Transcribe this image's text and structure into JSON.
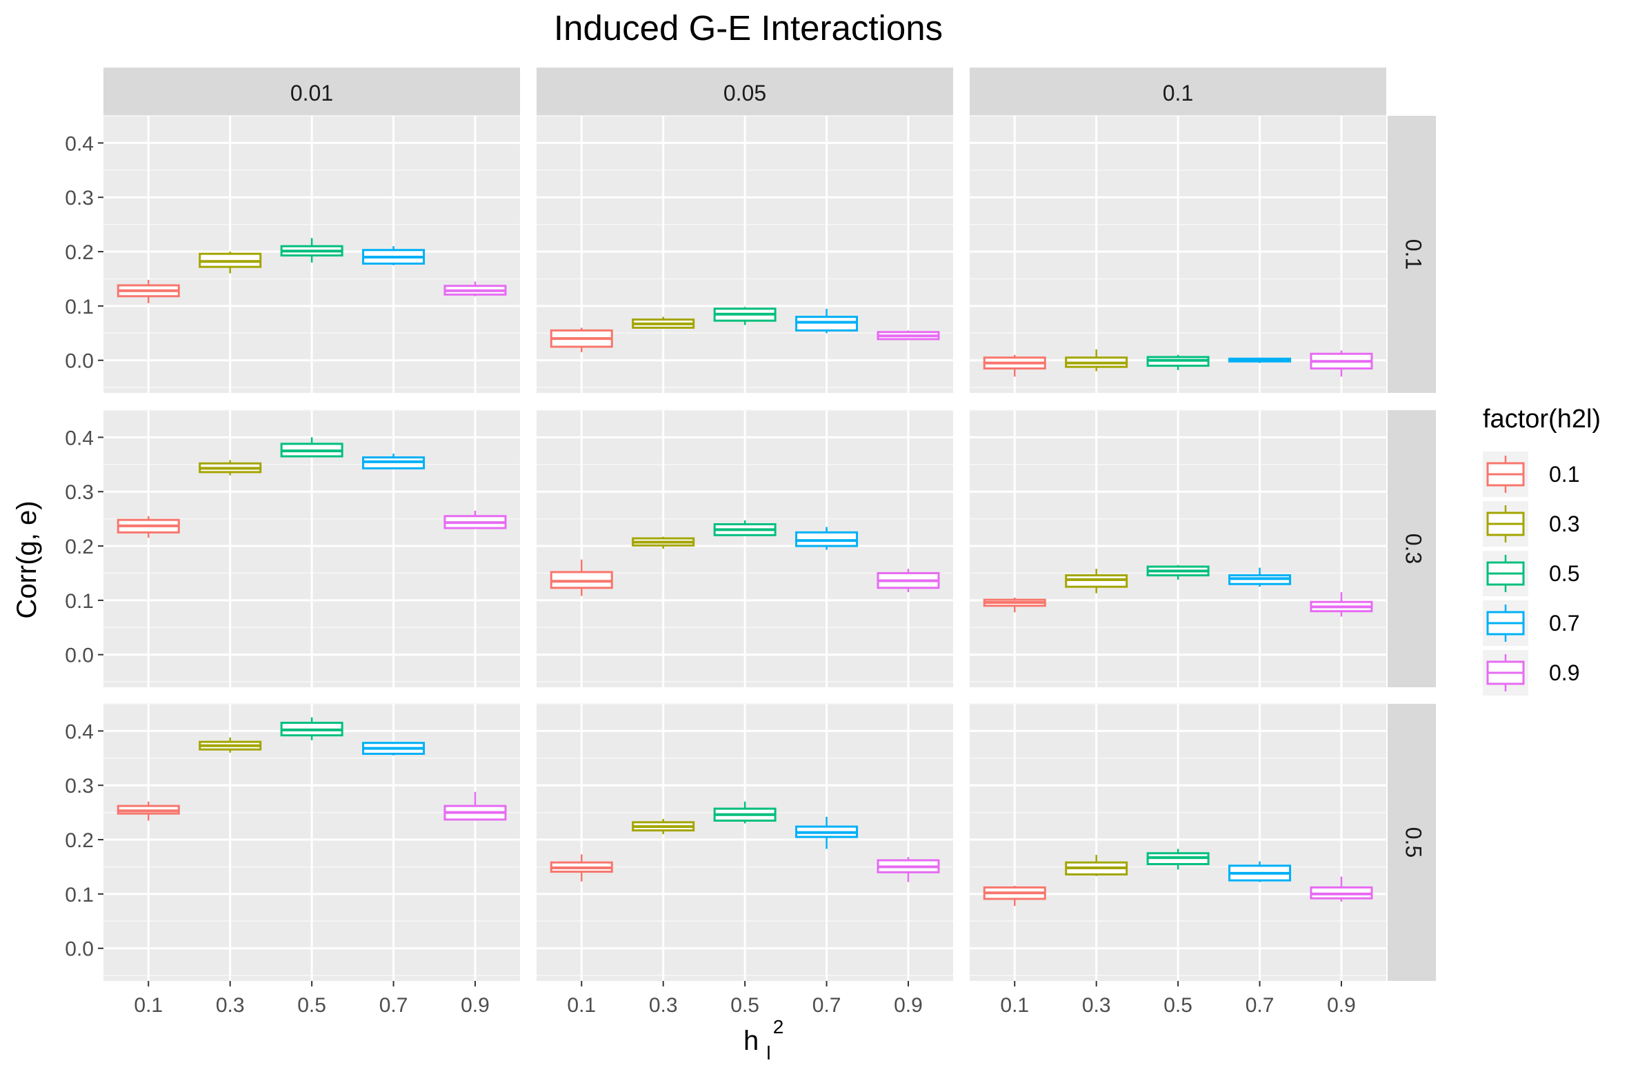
{
  "chart_data": {
    "type": "boxplot",
    "title": "Induced G-E Interactions",
    "xlabel_base": "h",
    "xlabel_sub": "l",
    "xlabel_sup": "2",
    "ylabel": "Corr(g, e)",
    "x_categories": [
      "0.1",
      "0.3",
      "0.5",
      "0.7",
      "0.9"
    ],
    "y_ticks": [
      "0.0",
      "0.1",
      "0.2",
      "0.3",
      "0.4"
    ],
    "ylim": [
      -0.06,
      0.45
    ],
    "column_facets": [
      "0.01",
      "0.05",
      "0.1"
    ],
    "row_facets": [
      "0.1",
      "0.3",
      "0.5"
    ],
    "legend": {
      "title": "factor(h2l)",
      "position": "right",
      "items": [
        {
          "label": "0.1",
          "color": "#F8766D"
        },
        {
          "label": "0.3",
          "color": "#A3A500"
        },
        {
          "label": "0.5",
          "color": "#00BF7D"
        },
        {
          "label": "0.7",
          "color": "#00B0F6"
        },
        {
          "label": "0.9",
          "color": "#E76BF3"
        }
      ]
    },
    "grid": true,
    "panels": [
      [
        [
          [
            0.105,
            0.118,
            0.128,
            0.138,
            0.148
          ],
          [
            0.16,
            0.172,
            0.182,
            0.196,
            0.2
          ],
          [
            0.18,
            0.193,
            0.201,
            0.21,
            0.225
          ],
          [
            0.175,
            0.178,
            0.19,
            0.203,
            0.21
          ],
          [
            0.118,
            0.121,
            0.128,
            0.137,
            0.145
          ]
        ],
        [
          [
            0.015,
            0.025,
            0.04,
            0.055,
            0.06
          ],
          [
            0.058,
            0.06,
            0.067,
            0.075,
            0.08
          ],
          [
            0.065,
            0.073,
            0.085,
            0.095,
            0.098
          ],
          [
            0.05,
            0.055,
            0.07,
            0.08,
            0.095
          ],
          [
            0.038,
            0.039,
            0.045,
            0.052,
            0.055
          ]
        ],
        [
          [
            -0.03,
            -0.015,
            -0.005,
            0.005,
            0.01
          ],
          [
            -0.02,
            -0.012,
            -0.005,
            0.005,
            0.02
          ],
          [
            -0.018,
            -0.01,
            0.0,
            0.006,
            0.01
          ],
          [
            -0.005,
            -0.002,
            0.0,
            0.003,
            0.005
          ],
          [
            -0.03,
            -0.015,
            -0.002,
            0.012,
            0.018
          ]
        ]
      ],
      [
        [
          [
            0.215,
            0.225,
            0.237,
            0.248,
            0.255
          ],
          [
            0.33,
            0.336,
            0.343,
            0.352,
            0.358
          ],
          [
            0.365,
            0.365,
            0.375,
            0.388,
            0.4
          ],
          [
            0.342,
            0.343,
            0.355,
            0.363,
            0.37
          ],
          [
            0.232,
            0.233,
            0.243,
            0.255,
            0.265
          ]
        ],
        [
          [
            0.108,
            0.123,
            0.135,
            0.152,
            0.175
          ],
          [
            0.195,
            0.201,
            0.207,
            0.214,
            0.217
          ],
          [
            0.22,
            0.22,
            0.23,
            0.24,
            0.247
          ],
          [
            0.193,
            0.2,
            0.21,
            0.225,
            0.235
          ],
          [
            0.115,
            0.123,
            0.136,
            0.15,
            0.158
          ]
        ],
        [
          [
            0.078,
            0.09,
            0.096,
            0.101,
            0.105
          ],
          [
            0.113,
            0.125,
            0.138,
            0.146,
            0.158
          ],
          [
            0.138,
            0.146,
            0.154,
            0.162,
            0.165
          ],
          [
            0.125,
            0.13,
            0.14,
            0.146,
            0.16
          ],
          [
            0.07,
            0.08,
            0.088,
            0.097,
            0.115
          ]
        ]
      ],
      [
        [
          [
            0.235,
            0.248,
            0.253,
            0.262,
            0.27
          ],
          [
            0.36,
            0.366,
            0.373,
            0.38,
            0.388
          ],
          [
            0.383,
            0.392,
            0.402,
            0.415,
            0.425
          ],
          [
            0.355,
            0.358,
            0.368,
            0.378,
            0.38
          ],
          [
            0.235,
            0.237,
            0.25,
            0.262,
            0.288
          ]
        ],
        [
          [
            0.123,
            0.141,
            0.148,
            0.158,
            0.173
          ],
          [
            0.21,
            0.217,
            0.224,
            0.232,
            0.238
          ],
          [
            0.23,
            0.235,
            0.246,
            0.257,
            0.27
          ],
          [
            0.183,
            0.205,
            0.213,
            0.224,
            0.242
          ],
          [
            0.122,
            0.14,
            0.15,
            0.162,
            0.168
          ]
        ],
        [
          [
            0.078,
            0.091,
            0.102,
            0.112,
            0.115
          ],
          [
            0.133,
            0.136,
            0.148,
            0.158,
            0.172
          ],
          [
            0.145,
            0.155,
            0.167,
            0.175,
            0.183
          ],
          [
            0.122,
            0.125,
            0.138,
            0.152,
            0.16
          ],
          [
            0.086,
            0.092,
            0.1,
            0.112,
            0.132
          ]
        ]
      ]
    ]
  }
}
